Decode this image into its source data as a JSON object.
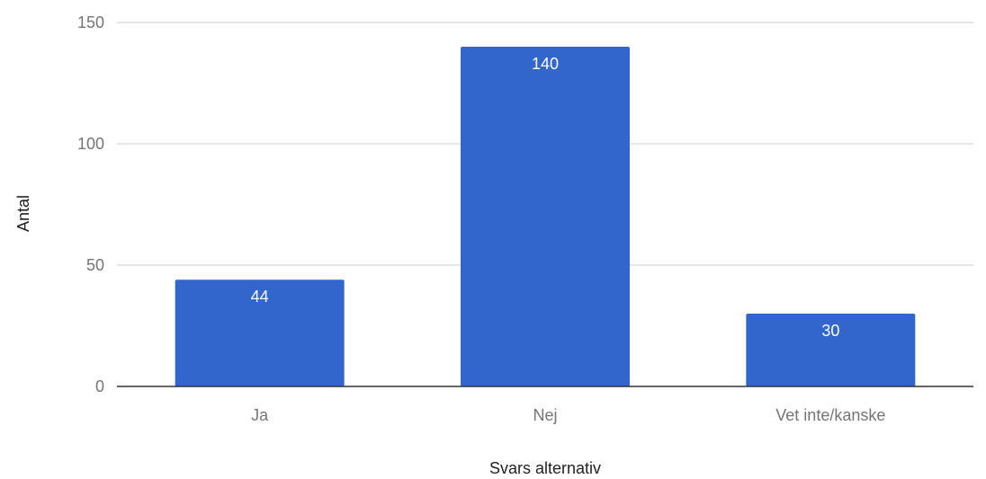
{
  "chart_data": {
    "type": "bar",
    "title": "",
    "xlabel": "Svars alternativ",
    "ylabel": "Antal",
    "categories": [
      "Ja",
      "Nej",
      "Vet inte/kanske"
    ],
    "values": [
      44,
      140,
      30
    ],
    "data_labels": [
      "44",
      "140",
      "30"
    ],
    "ylim": [
      0,
      150
    ],
    "yticks": [
      0,
      50,
      100,
      150
    ],
    "ytick_labels": [
      "0",
      "50",
      "100",
      "150"
    ],
    "grid": true,
    "legend": "none",
    "bar_color": "#3366cc",
    "grid_color": "#cccccc",
    "axis_color": "#333333"
  }
}
